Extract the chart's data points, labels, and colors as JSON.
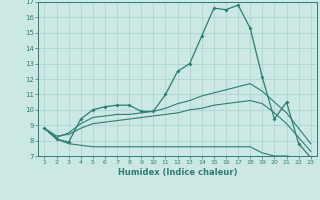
{
  "x": [
    1,
    2,
    3,
    4,
    5,
    6,
    7,
    8,
    9,
    10,
    11,
    12,
    13,
    14,
    15,
    16,
    17,
    18,
    19,
    20,
    21,
    22,
    23
  ],
  "line1": [
    8.8,
    8.1,
    7.9,
    9.4,
    10.0,
    10.2,
    10.3,
    10.3,
    9.9,
    9.9,
    11.0,
    12.5,
    13.0,
    14.8,
    16.6,
    16.5,
    16.8,
    15.3,
    12.1,
    9.4,
    10.5,
    7.8,
    6.9
  ],
  "line2": [
    8.8,
    8.2,
    8.5,
    9.1,
    9.5,
    9.6,
    9.7,
    9.7,
    9.8,
    9.9,
    10.1,
    10.4,
    10.6,
    10.9,
    11.1,
    11.3,
    11.5,
    11.7,
    11.2,
    10.5,
    9.8,
    8.8,
    7.8
  ],
  "line3": [
    8.8,
    8.3,
    8.4,
    8.8,
    9.1,
    9.2,
    9.3,
    9.4,
    9.5,
    9.6,
    9.7,
    9.8,
    10.0,
    10.1,
    10.3,
    10.4,
    10.5,
    10.6,
    10.4,
    9.8,
    9.1,
    8.2,
    7.3
  ],
  "line4": [
    8.8,
    8.1,
    7.8,
    7.7,
    7.6,
    7.6,
    7.6,
    7.6,
    7.6,
    7.6,
    7.6,
    7.6,
    7.6,
    7.6,
    7.6,
    7.6,
    7.6,
    7.6,
    7.2,
    7.0,
    7.0,
    6.9,
    6.9
  ],
  "color": "#2e7d6e",
  "bg_color": "#cce8e4",
  "grid_color": "#afd4cf",
  "xlabel": "Humidex (Indice chaleur)",
  "ylim": [
    7,
    17
  ],
  "xlim": [
    1,
    23
  ]
}
